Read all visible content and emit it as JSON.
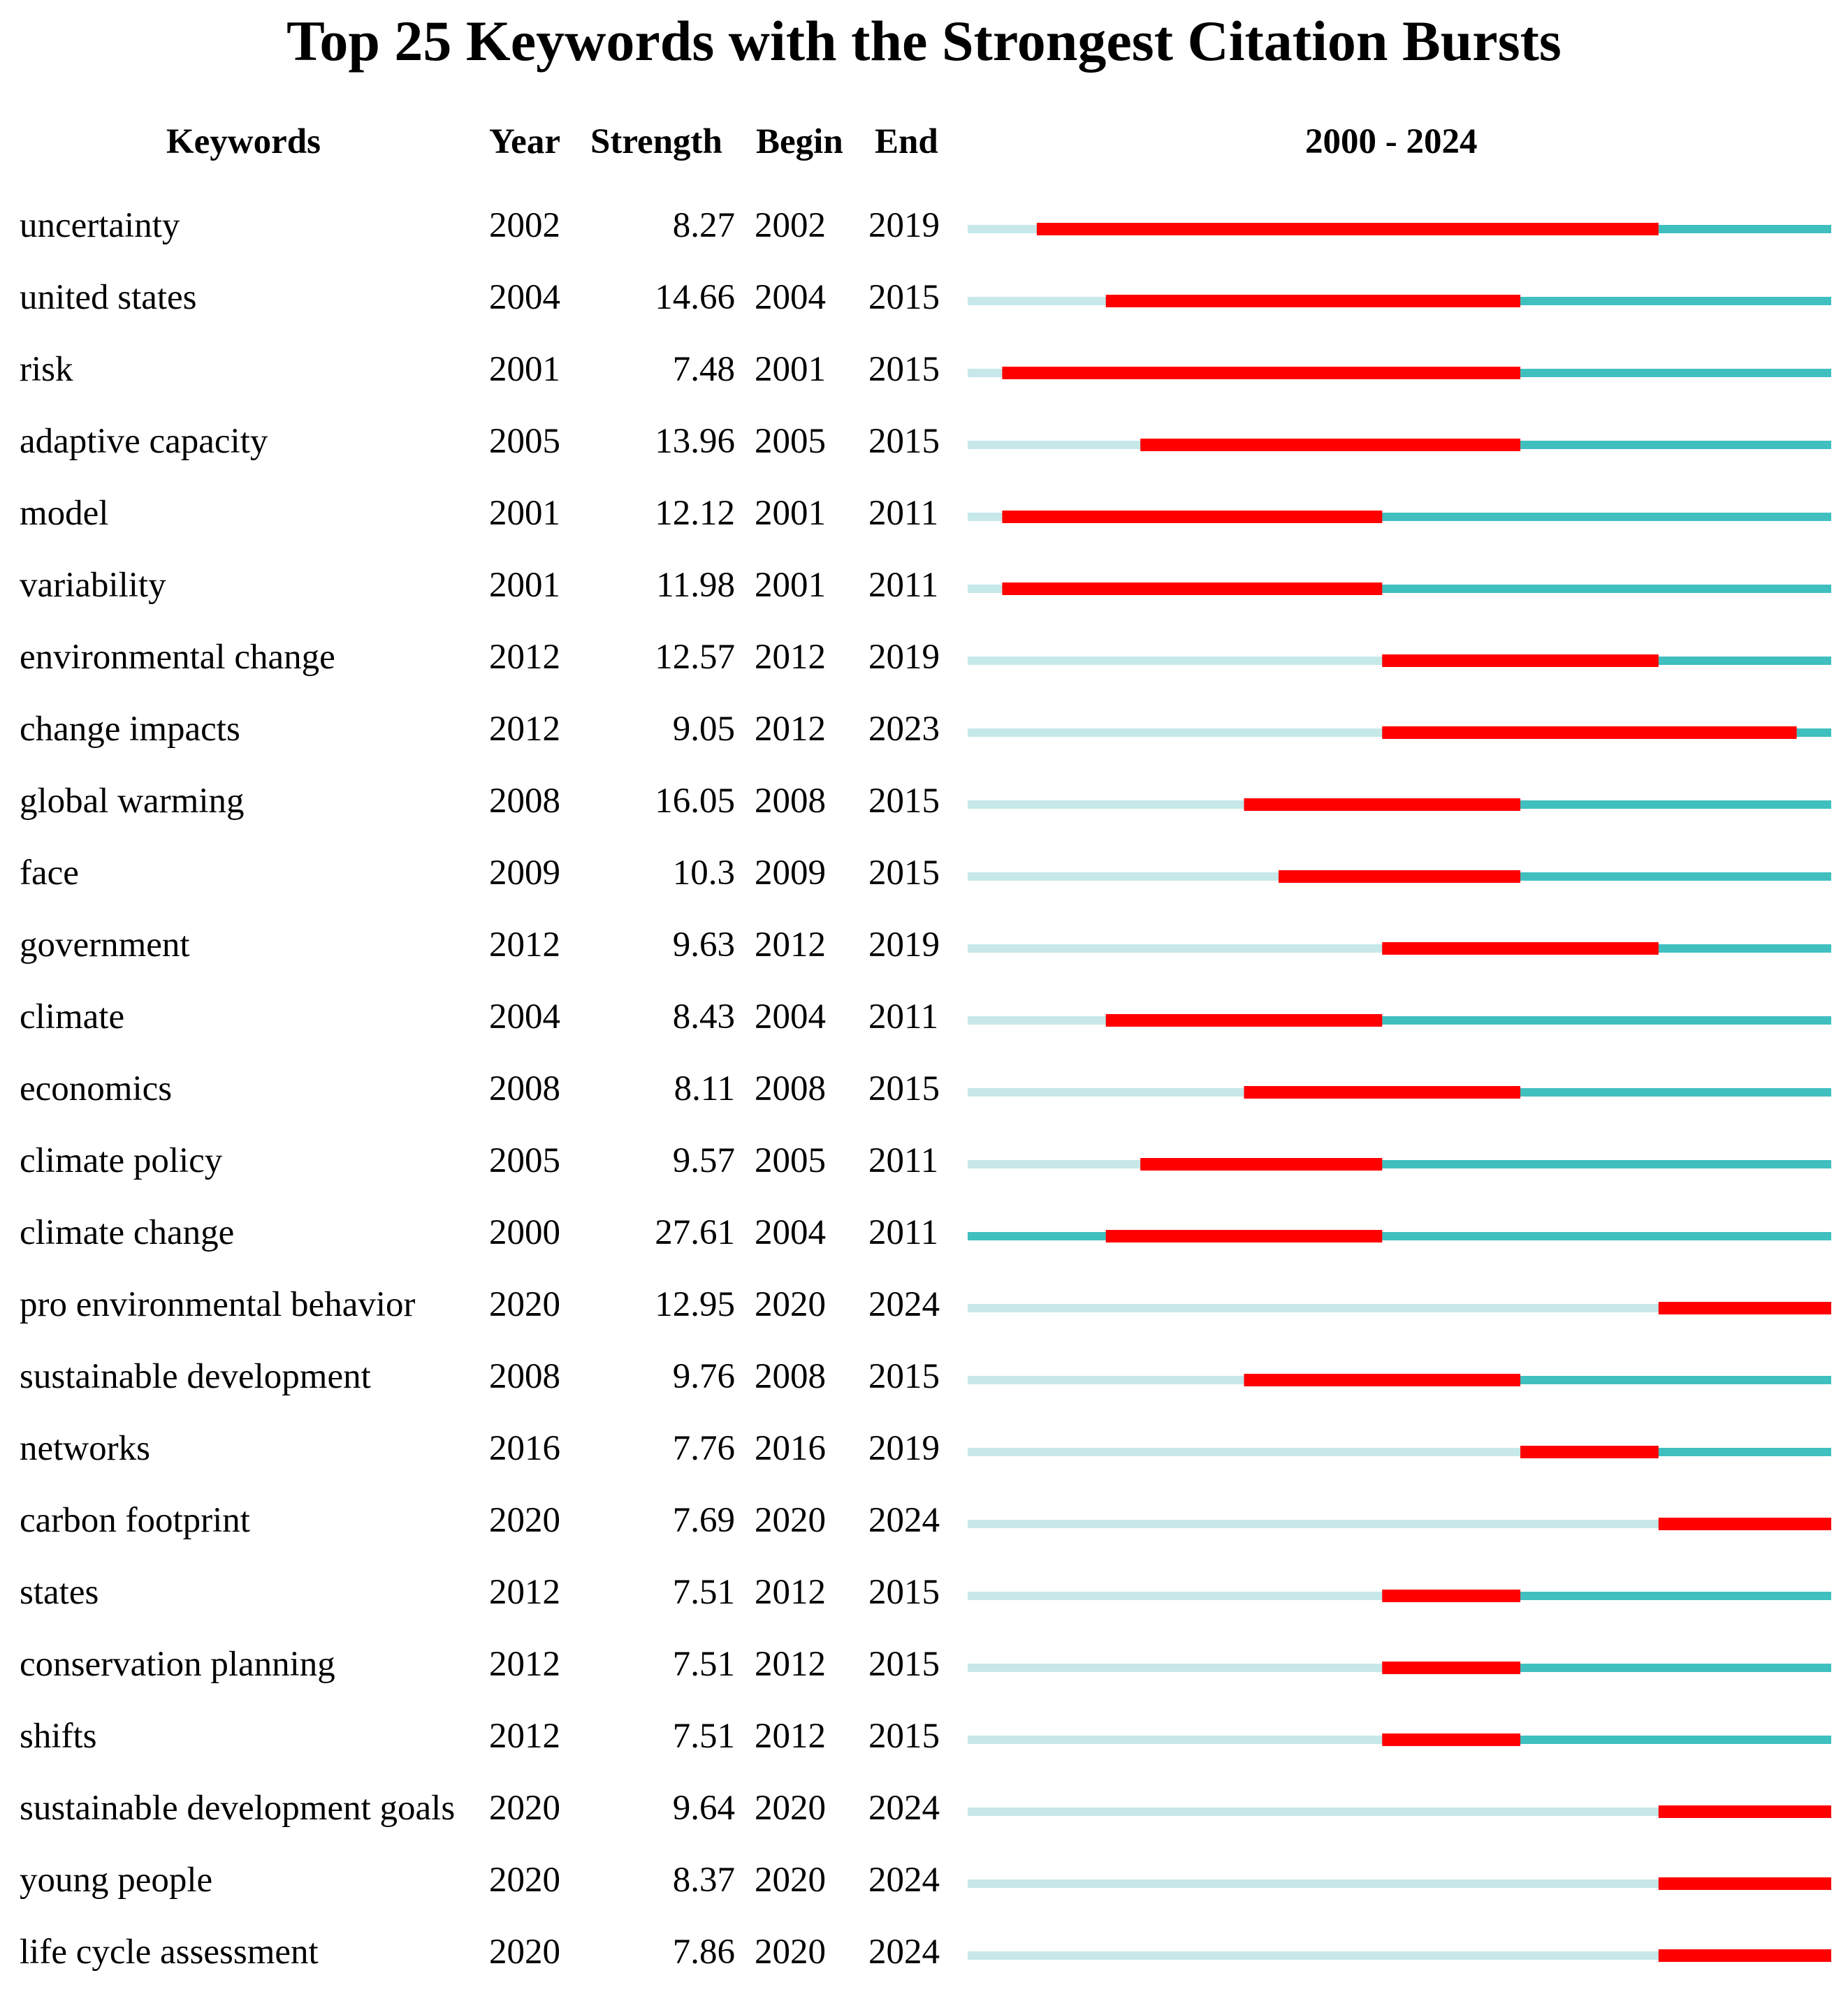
{
  "title": "Top 25 Keywords with the Strongest Citation Bursts",
  "headers": {
    "keywords": "Keywords",
    "year": "Year",
    "strength": "Strength",
    "begin": "Begin",
    "end": "End",
    "range": "2000 - 2024"
  },
  "colors": {
    "burst": "#ff0000",
    "active": "#40bfbf",
    "inactive": "#c6e8e8"
  },
  "chart_data": {
    "type": "table",
    "title": "Top 25 Keywords with the Strongest Citation Bursts",
    "range": [
      2000,
      2024
    ],
    "rows": [
      {
        "keyword": "uncertainty",
        "year": "2002",
        "strength": "8.27",
        "begin": "2002",
        "end": "2019"
      },
      {
        "keyword": "united states",
        "year": "2004",
        "strength": "14.66",
        "begin": "2004",
        "end": "2015"
      },
      {
        "keyword": "risk",
        "year": "2001",
        "strength": "7.48",
        "begin": "2001",
        "end": "2015"
      },
      {
        "keyword": "adaptive capacity",
        "year": "2005",
        "strength": "13.96",
        "begin": "2005",
        "end": "2015"
      },
      {
        "keyword": "model",
        "year": "2001",
        "strength": "12.12",
        "begin": "2001",
        "end": "2011"
      },
      {
        "keyword": "variability",
        "year": "2001",
        "strength": "11.98",
        "begin": "2001",
        "end": "2011"
      },
      {
        "keyword": "environmental change",
        "year": "2012",
        "strength": "12.57",
        "begin": "2012",
        "end": "2019"
      },
      {
        "keyword": "change impacts",
        "year": "2012",
        "strength": "9.05",
        "begin": "2012",
        "end": "2023"
      },
      {
        "keyword": "global warming",
        "year": "2008",
        "strength": "16.05",
        "begin": "2008",
        "end": "2015"
      },
      {
        "keyword": "face",
        "year": "2009",
        "strength": "10.3",
        "begin": "2009",
        "end": "2015"
      },
      {
        "keyword": "government",
        "year": "2012",
        "strength": "9.63",
        "begin": "2012",
        "end": "2019"
      },
      {
        "keyword": "climate",
        "year": "2004",
        "strength": "8.43",
        "begin": "2004",
        "end": "2011"
      },
      {
        "keyword": "economics",
        "year": "2008",
        "strength": "8.11",
        "begin": "2008",
        "end": "2015"
      },
      {
        "keyword": "climate policy",
        "year": "2005",
        "strength": "9.57",
        "begin": "2005",
        "end": "2011"
      },
      {
        "keyword": "climate change",
        "year": "2000",
        "strength": "27.61",
        "begin": "2004",
        "end": "2011"
      },
      {
        "keyword": "pro environmental behavior",
        "year": "2020",
        "strength": "12.95",
        "begin": "2020",
        "end": "2024"
      },
      {
        "keyword": "sustainable development",
        "year": "2008",
        "strength": "9.76",
        "begin": "2008",
        "end": "2015"
      },
      {
        "keyword": "networks",
        "year": "2016",
        "strength": "7.76",
        "begin": "2016",
        "end": "2019"
      },
      {
        "keyword": "carbon footprint",
        "year": "2020",
        "strength": "7.69",
        "begin": "2020",
        "end": "2024"
      },
      {
        "keyword": "states",
        "year": "2012",
        "strength": "7.51",
        "begin": "2012",
        "end": "2015"
      },
      {
        "keyword": "conservation planning",
        "year": "2012",
        "strength": "7.51",
        "begin": "2012",
        "end": "2015"
      },
      {
        "keyword": "shifts",
        "year": "2012",
        "strength": "7.51",
        "begin": "2012",
        "end": "2015"
      },
      {
        "keyword": "sustainable development goals",
        "year": "2020",
        "strength": "9.64",
        "begin": "2020",
        "end": "2024"
      },
      {
        "keyword": "young people",
        "year": "2020",
        "strength": "8.37",
        "begin": "2020",
        "end": "2024"
      },
      {
        "keyword": "life cycle assessment",
        "year": "2020",
        "strength": "7.86",
        "begin": "2020",
        "end": "2024"
      }
    ]
  }
}
